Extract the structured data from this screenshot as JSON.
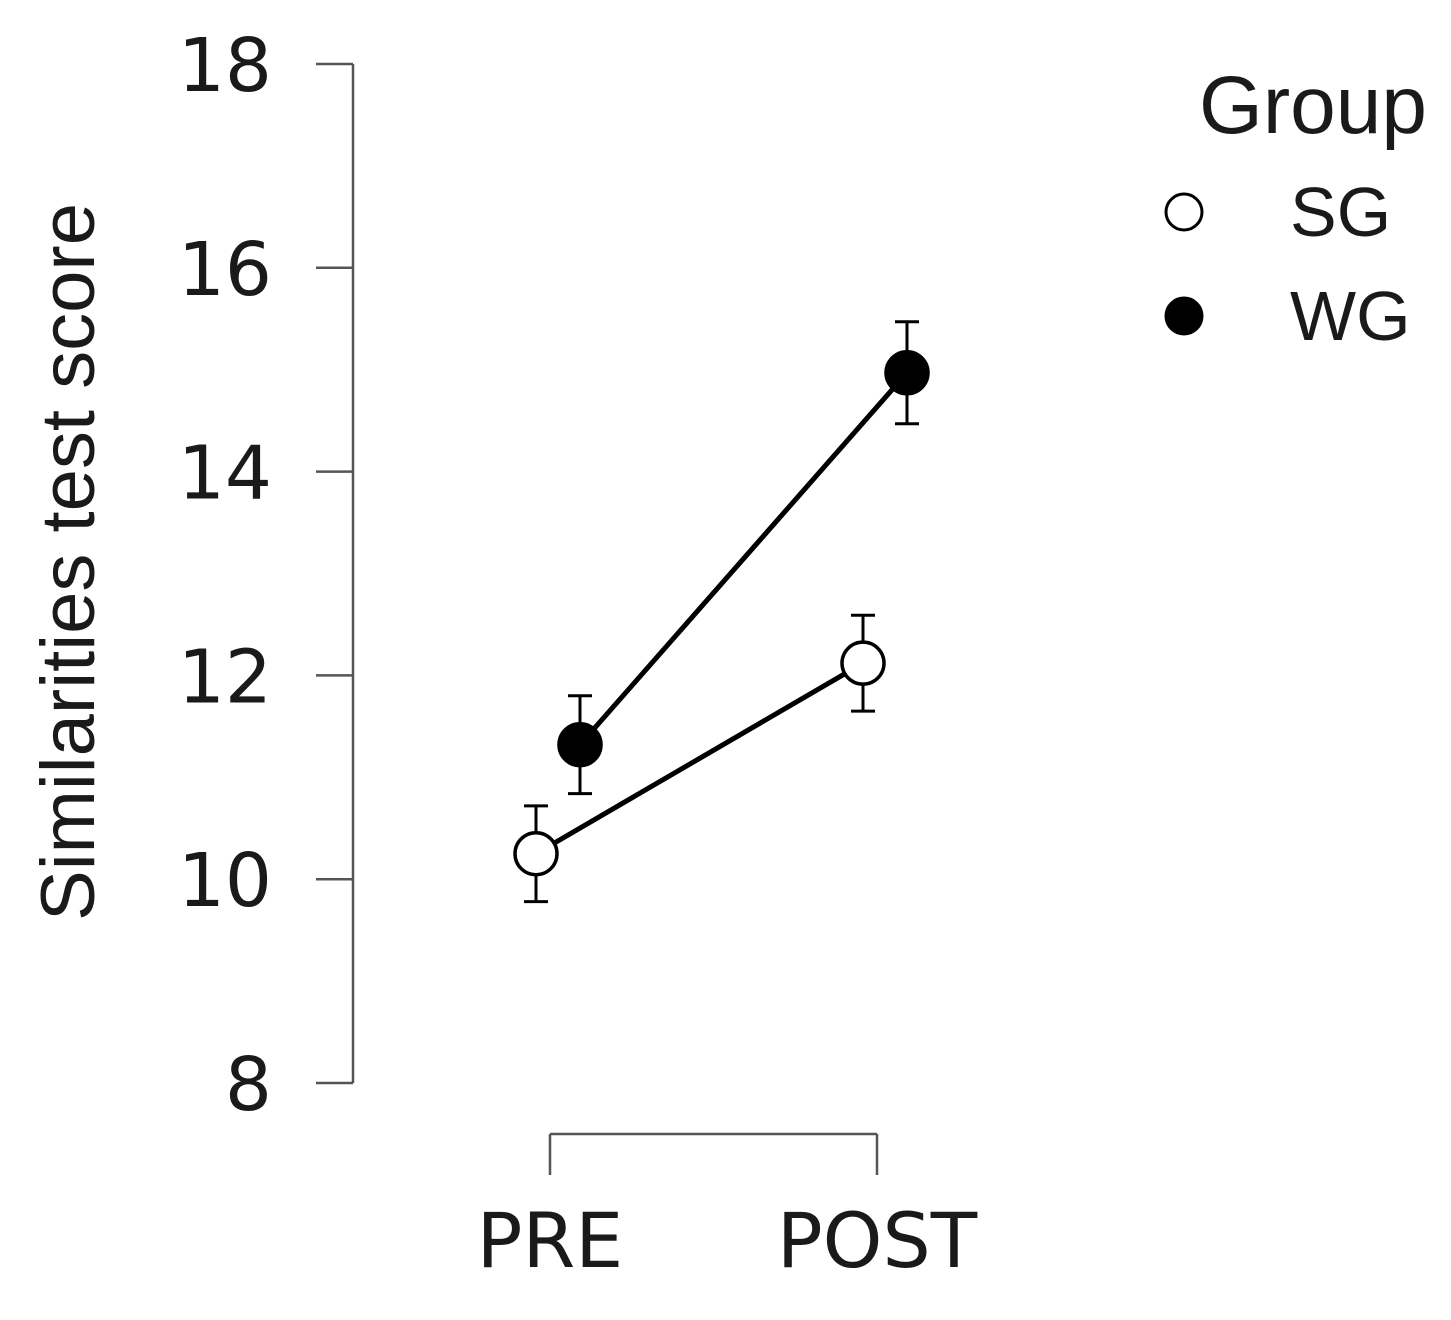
{
  "chart_data": {
    "type": "line",
    "title": "",
    "xlabel": "",
    "ylabel": "Similarities test score",
    "categories": [
      "PRE",
      "POST"
    ],
    "ylim": [
      8,
      18
    ],
    "yticks": [
      "8",
      "10",
      "12",
      "14",
      "16",
      "18"
    ],
    "grid": false,
    "legend": {
      "title": "Group",
      "position": "top-right"
    },
    "series": [
      {
        "name": "SG",
        "marker": "open-circle",
        "values": [
          10.25,
          12.12
        ],
        "error": [
          0.47,
          0.47
        ]
      },
      {
        "name": "WG",
        "marker": "filled-circle",
        "values": [
          11.32,
          14.97
        ],
        "error": [
          0.48,
          0.5
        ]
      }
    ],
    "colors": {
      "line": "#000000",
      "axis": "#555555",
      "marker_fill_open": "#ffffff",
      "marker_fill_filled": "#000000"
    }
  }
}
